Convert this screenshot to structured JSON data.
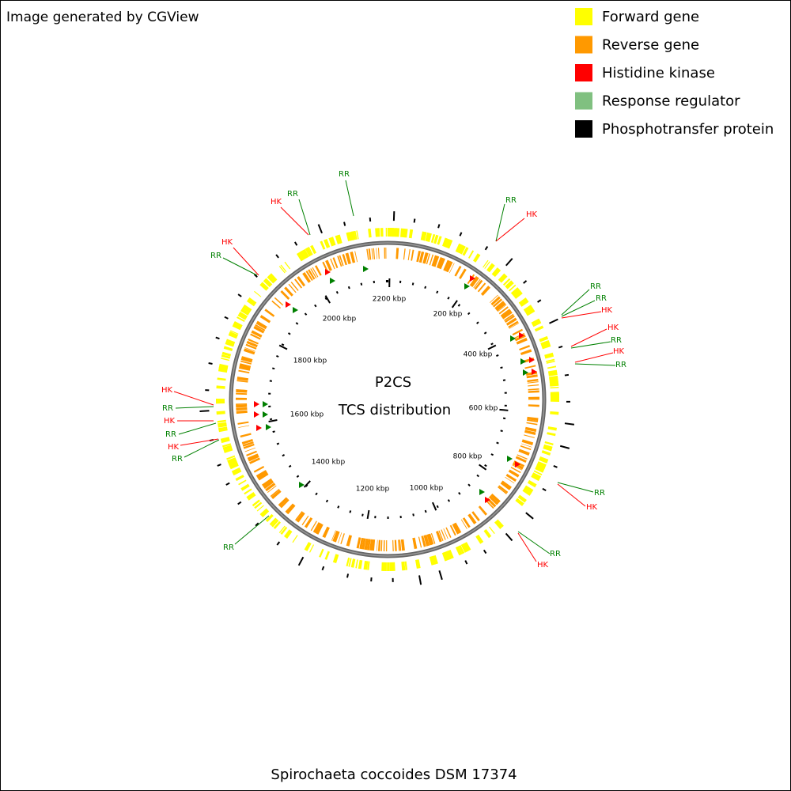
{
  "header": {
    "credit": "Image generated by CGView"
  },
  "legend": [
    {
      "label": "Forward gene",
      "color": "#ffff00"
    },
    {
      "label": "Reverse gene",
      "color": "#ff9900"
    },
    {
      "label": "Histidine kinase",
      "color": "#ff0000"
    },
    {
      "label": "Response regulator",
      "color": "#80c080"
    },
    {
      "label": "Phosphotransfer protein",
      "color": "#000000"
    }
  ],
  "map": {
    "title": "P2CS",
    "subtitle": "TCS distribution",
    "ticks": [
      "200 kbp",
      "400 kbp",
      "600 kbp",
      "800 kbp",
      "1000 kbp",
      "1200 kbp",
      "1400 kbp",
      "1600 kbp",
      "1800 kbp",
      "2000 kbp",
      "2200 kbp"
    ],
    "features": [
      {
        "label": "RR",
        "color": "#008000"
      },
      {
        "label": "RR",
        "color": "#008000"
      },
      {
        "label": "HK",
        "color": "#ff0000"
      },
      {
        "label": "HK",
        "color": "#ff0000"
      },
      {
        "label": "RR",
        "color": "#008000"
      },
      {
        "label": "RR",
        "color": "#008000"
      },
      {
        "label": "HK",
        "color": "#ff0000"
      },
      {
        "label": "RR",
        "color": "#008000"
      },
      {
        "label": "RR",
        "color": "#008000"
      },
      {
        "label": "HK",
        "color": "#ff0000"
      },
      {
        "label": "HK",
        "color": "#ff0000"
      },
      {
        "label": "RR",
        "color": "#008000"
      },
      {
        "label": "HK",
        "color": "#ff0000"
      },
      {
        "label": "RR",
        "color": "#008000"
      },
      {
        "label": "RR",
        "color": "#008000"
      },
      {
        "label": "HK",
        "color": "#ff0000"
      },
      {
        "label": "RR",
        "color": "#008000"
      },
      {
        "label": "HK",
        "color": "#ff0000"
      },
      {
        "label": "RR",
        "color": "#008000"
      },
      {
        "label": "HK",
        "color": "#ff0000"
      },
      {
        "label": "RR",
        "color": "#008000"
      },
      {
        "label": "HK",
        "color": "#ff0000"
      },
      {
        "label": "RR",
        "color": "#008000"
      },
      {
        "label": "HK",
        "color": "#ff0000"
      },
      {
        "label": "RR",
        "color": "#008000"
      }
    ]
  },
  "footer": {
    "organism": "Spirochaeta coccoides DSM 17374"
  }
}
